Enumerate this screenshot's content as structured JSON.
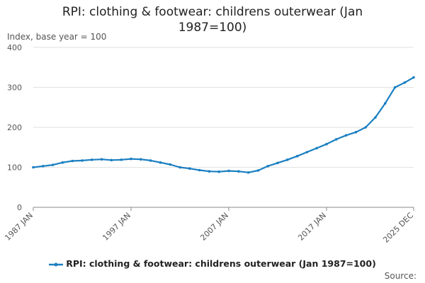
{
  "chart_data": {
    "type": "line",
    "title_lines": [
      "RPI: clothing & footwear: childrens outerwear (Jan",
      "1987=100)"
    ],
    "ylabel": "Index, base year = 100",
    "ylim": [
      0,
      400
    ],
    "yticks": [
      "0",
      "100",
      "200",
      "300",
      "400"
    ],
    "xlim": [
      "1987-01",
      "2025-12"
    ],
    "xticks": [
      {
        "label": "1987 JAN",
        "date": "1987-01"
      },
      {
        "label": "1997 JAN",
        "date": "1997-01"
      },
      {
        "label": "2007 JAN",
        "date": "2007-01"
      },
      {
        "label": "2017 JAN",
        "date": "2017-01"
      },
      {
        "label": "2025 DEC",
        "date": "2025-12"
      }
    ],
    "grid": true,
    "legend_position": "bottom",
    "series": [
      {
        "name": "RPI: clothing & footwear: childrens outerwear (Jan 1987=100)",
        "color": "#1a7fc1",
        "points": [
          [
            "1987-01",
            100
          ],
          [
            "1988-01",
            103
          ],
          [
            "1989-01",
            106
          ],
          [
            "1990-01",
            112
          ],
          [
            "1991-01",
            116
          ],
          [
            "1992-01",
            117
          ],
          [
            "1993-01",
            119
          ],
          [
            "1994-01",
            120
          ],
          [
            "1995-01",
            118
          ],
          [
            "1996-01",
            119
          ],
          [
            "1997-01",
            121
          ],
          [
            "1998-01",
            120
          ],
          [
            "1999-01",
            117
          ],
          [
            "2000-01",
            112
          ],
          [
            "2001-01",
            107
          ],
          [
            "2002-01",
            100
          ],
          [
            "2003-01",
            97
          ],
          [
            "2004-01",
            93
          ],
          [
            "2005-01",
            90
          ],
          [
            "2006-01",
            89
          ],
          [
            "2007-01",
            91
          ],
          [
            "2008-01",
            90
          ],
          [
            "2009-01",
            87
          ],
          [
            "2010-01",
            92
          ],
          [
            "2011-01",
            103
          ],
          [
            "2012-01",
            111
          ],
          [
            "2013-01",
            119
          ],
          [
            "2014-01",
            128
          ],
          [
            "2015-01",
            138
          ],
          [
            "2016-01",
            148
          ],
          [
            "2017-01",
            158
          ],
          [
            "2018-01",
            170
          ],
          [
            "2019-01",
            180
          ],
          [
            "2020-01",
            188
          ],
          [
            "2021-01",
            200
          ],
          [
            "2022-01",
            225
          ],
          [
            "2023-01",
            260
          ],
          [
            "2024-01",
            300
          ],
          [
            "2025-01",
            312
          ],
          [
            "2025-12",
            325
          ]
        ]
      }
    ]
  },
  "source_label": "Source:"
}
